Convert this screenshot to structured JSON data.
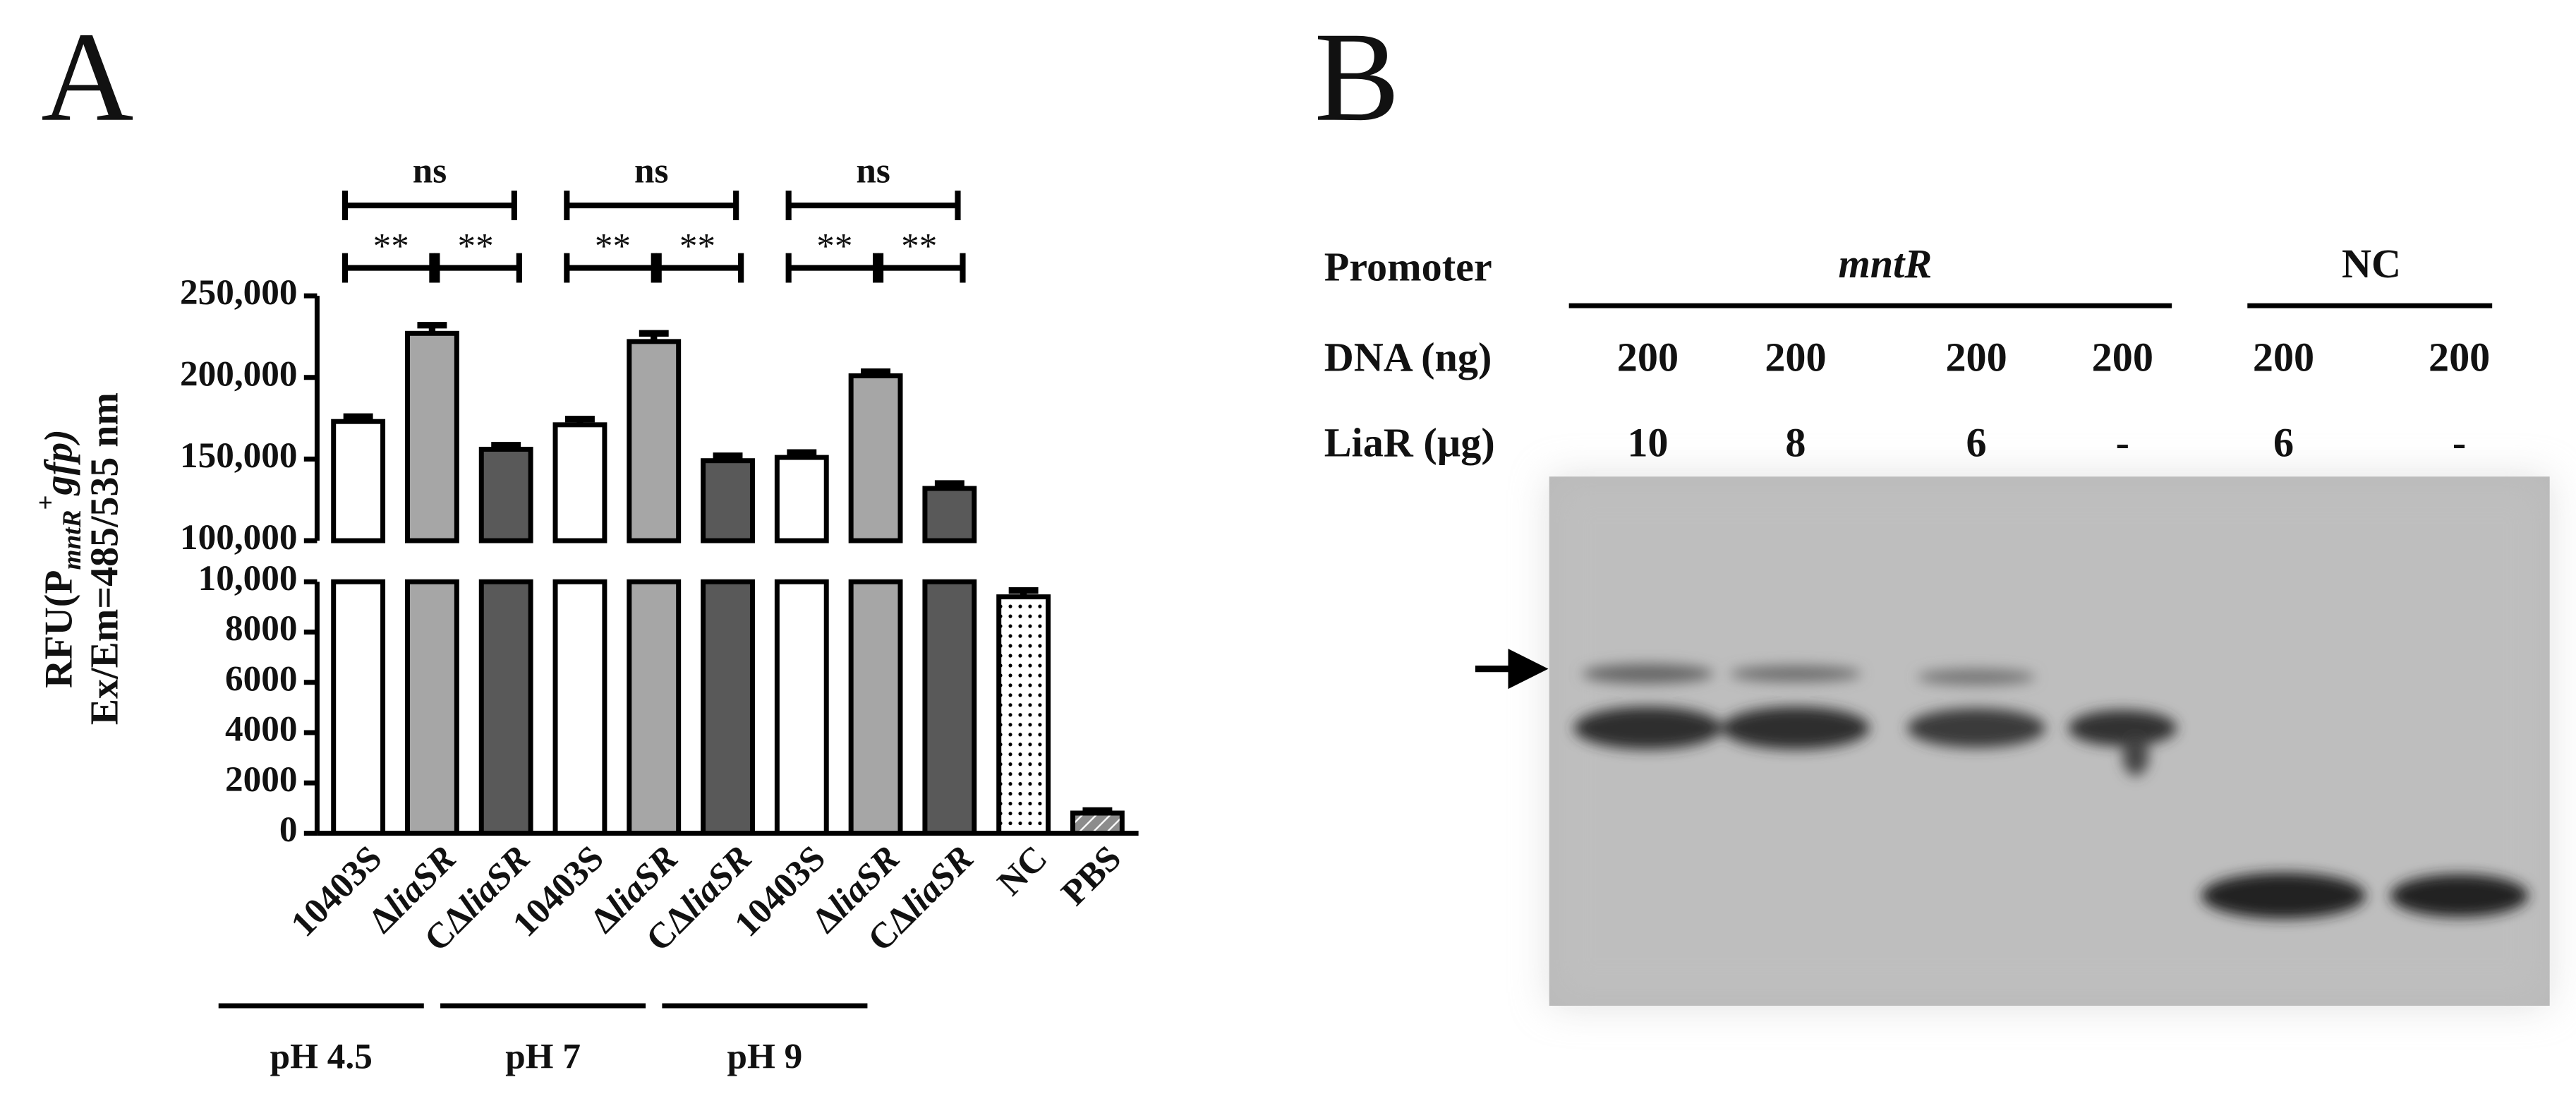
{
  "chart_data": {
    "type": "bar",
    "panel_label": "A",
    "ylabel": [
      "RFU(P",
      "mntR",
      "+",
      "gfp)"
    ],
    "ylabel_line2": "Ex/Em=485/535 nm",
    "categories": [
      "10403S",
      "ΔliaSR",
      "CΔliaSR",
      "10403S",
      "ΔliaSR",
      "CΔliaSR",
      "10403S",
      "ΔliaSR",
      "CΔliaSR",
      "NC",
      "PBS"
    ],
    "values": [
      173000,
      227000,
      156000,
      171000,
      222000,
      149000,
      151000,
      201000,
      132000,
      9400,
      800
    ],
    "errors": [
      3000,
      5000,
      2500,
      3500,
      5000,
      3000,
      3000,
      2500,
      3000,
      250,
      100
    ],
    "colors": [
      "#ffffff",
      "#a6a6a6",
      "#595959",
      "#ffffff",
      "#a6a6a6",
      "#595959",
      "#ffffff",
      "#a6a6a6",
      "#595959",
      "#ffffff",
      "#9a9a9a"
    ],
    "bar_styles": [
      "solid",
      "solid",
      "solid",
      "solid",
      "solid",
      "solid",
      "solid",
      "solid",
      "solid",
      "dotted",
      "hatched"
    ],
    "segments": [
      {
        "ylim": [
          0,
          10000
        ],
        "yticks": [
          0,
          2000,
          4000,
          6000,
          8000,
          {
            "value": 10000,
            "label": "10,000"
          }
        ]
      },
      {
        "ylim": [
          100000,
          250000
        ],
        "yticks": [
          {
            "value": 100000,
            "label": "100,000"
          },
          {
            "value": 150000,
            "label": "150,000"
          },
          {
            "value": 200000,
            "label": "200,000"
          },
          {
            "value": 250000,
            "label": "250,000"
          }
        ]
      }
    ],
    "groups": [
      {
        "label": "pH 4.5",
        "bars": [
          0,
          2
        ]
      },
      {
        "label": "pH 7",
        "bars": [
          3,
          5
        ]
      },
      {
        "label": "pH 9",
        "bars": [
          6,
          8
        ]
      }
    ],
    "significance": [
      {
        "bars": [
          0,
          2
        ],
        "label": "ns"
      },
      {
        "bars": [
          0,
          1
        ],
        "label": "**"
      },
      {
        "bars": [
          1,
          2
        ],
        "label": "**"
      },
      {
        "bars": [
          3,
          5
        ],
        "label": "ns"
      },
      {
        "bars": [
          3,
          4
        ],
        "label": "**"
      },
      {
        "bars": [
          4,
          5
        ],
        "label": "**"
      },
      {
        "bars": [
          6,
          8
        ],
        "label": "ns"
      },
      {
        "bars": [
          6,
          7
        ],
        "label": "**"
      },
      {
        "bars": [
          7,
          8
        ],
        "label": "**"
      }
    ]
  },
  "gel": {
    "panel_label": "B",
    "row_headers": [
      "Promoter",
      "DNA (ng)",
      "LiaR (µg)"
    ],
    "promoters": [
      {
        "label": "mntR",
        "lanes": [
          {
            "dna": "200",
            "liar": "10"
          },
          {
            "dna": "200",
            "liar": "8"
          },
          {
            "dna": "200",
            "liar": "6"
          },
          {
            "dna": "200",
            "liar": "-"
          }
        ]
      },
      {
        "label": "NC",
        "lanes": [
          {
            "dna": "200",
            "liar": "6"
          },
          {
            "dna": "200",
            "liar": "-"
          }
        ]
      }
    ]
  }
}
